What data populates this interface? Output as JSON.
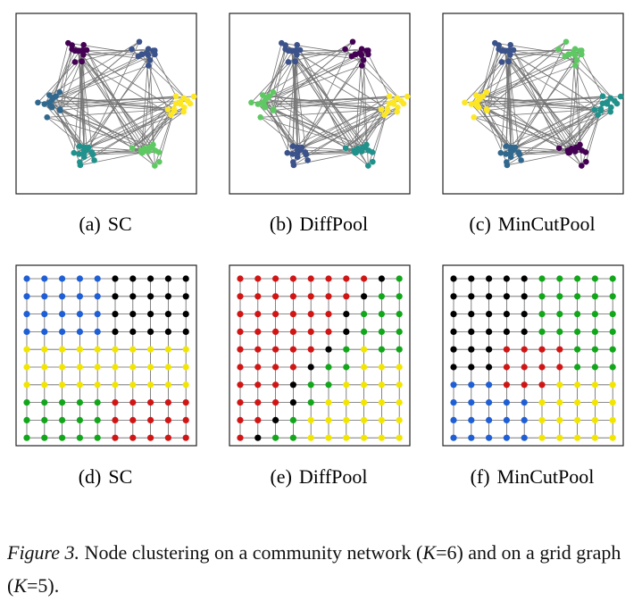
{
  "panels": [
    {
      "label": "(a)",
      "name": "SC"
    },
    {
      "label": "(b)",
      "name": "DiffPool"
    },
    {
      "label": "(c)",
      "name": "MinCutPool"
    },
    {
      "label": "(d)",
      "name": "SC"
    },
    {
      "label": "(e)",
      "name": "DiffPool"
    },
    {
      "label": "(f)",
      "name": "MinCutPool"
    }
  ],
  "caption": {
    "label": "Figure 3.",
    "parts": [
      "Node clustering on a community network (",
      "K",
      "=6) and on a grid graph (",
      "K",
      "=5)."
    ]
  }
}
